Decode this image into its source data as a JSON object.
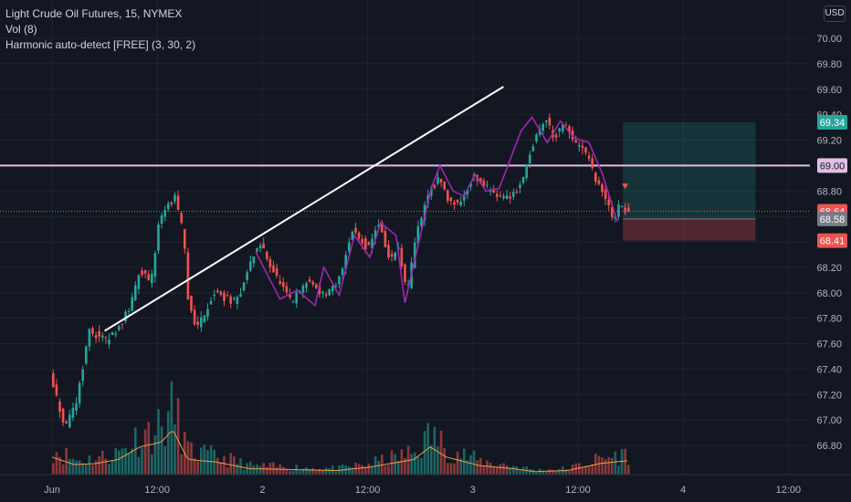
{
  "legend": {
    "symbol": "Light Crude Oil Futures, 15, NYMEX",
    "vol": "Vol (8)",
    "harmonic": "Harmonic auto-detect [FREE] (3, 30, 2)"
  },
  "currency_button": "USD",
  "colors": {
    "background": "#131722",
    "up": "#26a69a",
    "down": "#ef5350",
    "pattern": "#9c27b0",
    "hline": "#e1bee7",
    "trendline": "#ffffff",
    "target_zone": "#26a69a",
    "stop_zone": "#ef5350",
    "volume_ma": "#e8a04a"
  },
  "price_badges": [
    {
      "label": "69.34",
      "color": "#26a69a",
      "text_color": "#ffffff"
    },
    {
      "label": "69.00",
      "color": "#e1bee7",
      "text_color": "#131722"
    },
    {
      "label": "68.64",
      "color": "#ef5350",
      "text_color": "#ffffff"
    },
    {
      "label": "68.58",
      "color": "#787b86",
      "text_color": "#ffffff"
    },
    {
      "label": "68.41",
      "color": "#ef5350",
      "text_color": "#ffffff"
    }
  ],
  "chart_data": {
    "type": "candlestick",
    "title": "Light Crude Oil Futures, 15, NYMEX",
    "interval": "15",
    "exchange": "NYMEX",
    "currency": "USD",
    "y_ticks": [
      "70.00",
      "69.80",
      "69.60",
      "69.40",
      "69.20",
      "69.00",
      "68.80",
      "68.60",
      "68.40",
      "68.20",
      "68.00",
      "67.80",
      "67.60",
      "67.40",
      "67.20",
      "67.00",
      "66.80"
    ],
    "ylim": [
      66.76,
      70.12
    ],
    "x_ticks": [
      "Jun",
      "12:00",
      "2",
      "12:00",
      "3",
      "12:00",
      "4",
      "12:00"
    ],
    "x_tick_index": [
      0,
      96,
      192,
      288,
      384,
      480,
      576,
      672
    ],
    "grid": true,
    "price_path": [
      [
        0,
        67.35
      ],
      [
        14,
        66.92
      ],
      [
        24,
        67.15
      ],
      [
        36,
        67.7
      ],
      [
        52,
        67.62
      ],
      [
        64,
        67.75
      ],
      [
        74,
        67.9
      ],
      [
        82,
        68.2
      ],
      [
        92,
        68.05
      ],
      [
        100,
        68.6
      ],
      [
        114,
        68.75
      ],
      [
        122,
        68.45
      ],
      [
        126,
        67.95
      ],
      [
        134,
        67.72
      ],
      [
        150,
        68.0
      ],
      [
        170,
        67.92
      ],
      [
        186,
        68.3
      ],
      [
        192,
        68.38
      ],
      [
        208,
        68.1
      ],
      [
        220,
        67.92
      ],
      [
        236,
        68.1
      ],
      [
        250,
        67.98
      ],
      [
        262,
        68.05
      ],
      [
        276,
        68.5
      ],
      [
        290,
        68.35
      ],
      [
        300,
        68.55
      ],
      [
        310,
        68.25
      ],
      [
        318,
        68.35
      ],
      [
        326,
        67.98
      ],
      [
        334,
        68.45
      ],
      [
        346,
        68.8
      ],
      [
        356,
        68.9
      ],
      [
        362,
        68.74
      ],
      [
        374,
        68.7
      ],
      [
        386,
        68.92
      ],
      [
        400,
        68.82
      ],
      [
        416,
        68.74
      ],
      [
        428,
        68.82
      ],
      [
        440,
        69.15
      ],
      [
        452,
        69.38
      ],
      [
        460,
        69.22
      ],
      [
        470,
        69.32
      ],
      [
        482,
        69.14
      ],
      [
        488,
        69.12
      ],
      [
        494,
        68.98
      ],
      [
        500,
        68.85
      ],
      [
        508,
        68.72
      ],
      [
        514,
        68.58
      ],
      [
        520,
        68.69
      ],
      [
        526,
        68.64
      ]
    ],
    "volume_profile": [
      [
        0,
        0.35
      ],
      [
        20,
        0.2
      ],
      [
        40,
        0.22
      ],
      [
        60,
        0.3
      ],
      [
        80,
        0.55
      ],
      [
        100,
        0.65
      ],
      [
        110,
        0.9
      ],
      [
        124,
        0.3
      ],
      [
        150,
        0.25
      ],
      [
        180,
        0.12
      ],
      [
        220,
        0.1
      ],
      [
        260,
        0.08
      ],
      [
        290,
        0.15
      ],
      [
        330,
        0.3
      ],
      [
        345,
        0.55
      ],
      [
        360,
        0.35
      ],
      [
        390,
        0.18
      ],
      [
        420,
        0.12
      ],
      [
        440,
        0.06
      ],
      [
        470,
        0.08
      ],
      [
        500,
        0.22
      ],
      [
        526,
        0.28
      ]
    ],
    "trendline": [
      [
        48,
        67.7
      ],
      [
        412,
        69.62
      ]
    ],
    "horizontal_line": 69.0,
    "harmonic_pattern": [
      [
        186,
        68.32
      ],
      [
        208,
        67.95
      ],
      [
        224,
        68.02
      ],
      [
        240,
        67.9
      ],
      [
        248,
        68.2
      ],
      [
        262,
        67.98
      ],
      [
        276,
        68.45
      ],
      [
        290,
        68.28
      ],
      [
        300,
        68.55
      ],
      [
        314,
        68.45
      ],
      [
        322,
        67.92
      ],
      [
        346,
        68.82
      ],
      [
        354,
        69.0
      ],
      [
        366,
        68.8
      ],
      [
        376,
        68.76
      ],
      [
        386,
        68.93
      ],
      [
        396,
        68.8
      ],
      [
        408,
        68.82
      ],
      [
        428,
        69.27
      ],
      [
        438,
        69.38
      ],
      [
        452,
        69.18
      ],
      [
        464,
        69.35
      ],
      [
        476,
        69.22
      ],
      [
        490,
        69.18
      ],
      [
        502,
        68.94
      ],
      [
        516,
        68.56
      ]
    ],
    "sell_marker": {
      "x": 523,
      "price": 68.83
    },
    "position": {
      "x_start": 521,
      "x_end": 642,
      "target": 69.34,
      "entry": 68.58,
      "stop": 68.41
    },
    "current_price": 68.64
  }
}
